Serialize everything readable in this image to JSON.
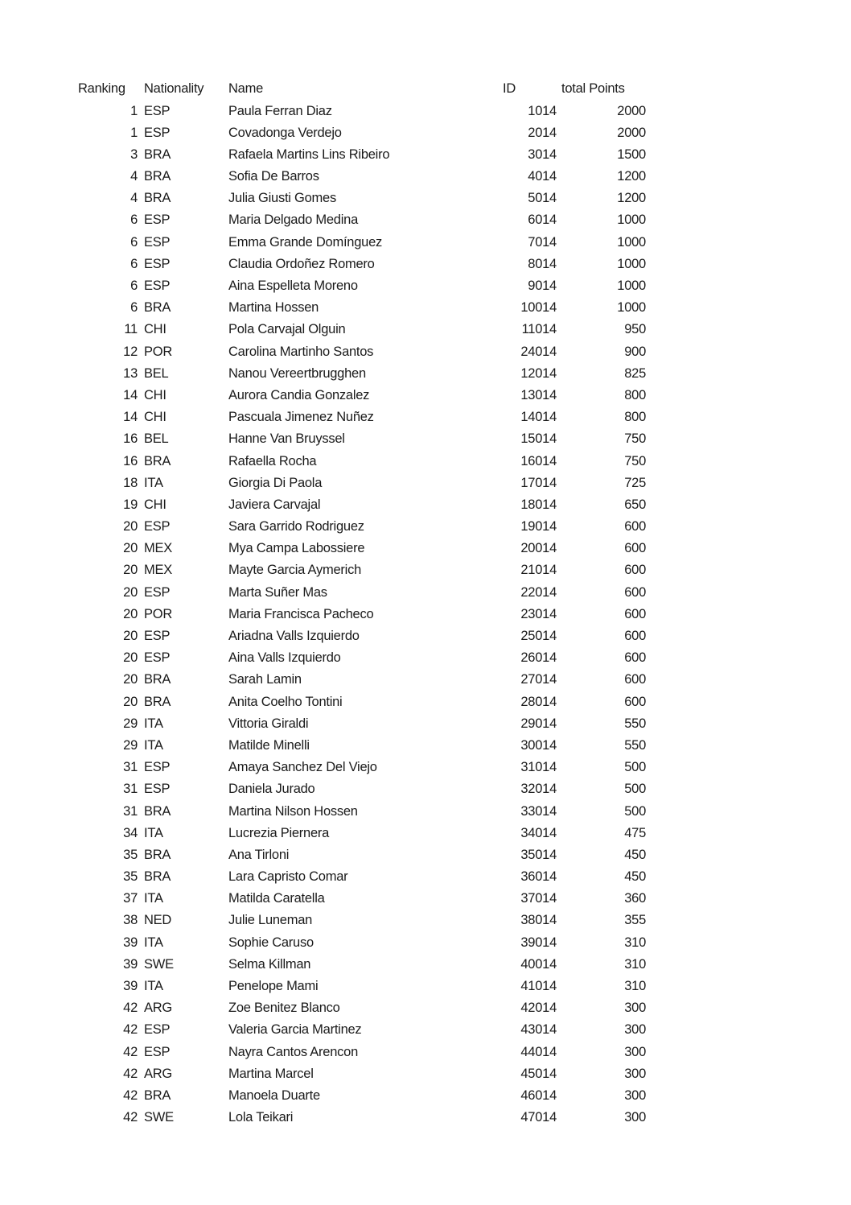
{
  "page": {
    "background_color": "#ffffff",
    "text_color": "#1b1b1b"
  },
  "table": {
    "columns": [
      {
        "key": "rank",
        "label": "Ranking"
      },
      {
        "key": "nat",
        "label": "Nationality"
      },
      {
        "key": "name",
        "label": "Name"
      },
      {
        "key": "id",
        "label": "ID"
      },
      {
        "key": "points",
        "label": "total Points"
      }
    ],
    "rows": [
      [
        1,
        "ESP",
        "Paula Ferran Diaz",
        1014,
        2000
      ],
      [
        1,
        "ESP",
        "Covadonga Verdejo",
        2014,
        2000
      ],
      [
        3,
        "BRA",
        "Rafaela Martins Lins Ribeiro",
        3014,
        1500
      ],
      [
        4,
        "BRA",
        "Sofia De Barros",
        4014,
        1200
      ],
      [
        4,
        "BRA",
        "Julia Giusti Gomes",
        5014,
        1200
      ],
      [
        6,
        "ESP",
        "Maria Delgado Medina",
        6014,
        1000
      ],
      [
        6,
        "ESP",
        "Emma Grande Domínguez",
        7014,
        1000
      ],
      [
        6,
        "ESP",
        "Claudia Ordoñez Romero",
        8014,
        1000
      ],
      [
        6,
        "ESP",
        "Aina Espelleta Moreno",
        9014,
        1000
      ],
      [
        6,
        "BRA",
        "Martina Hossen",
        10014,
        1000
      ],
      [
        11,
        "CHI",
        "Pola Carvajal Olguin",
        11014,
        950
      ],
      [
        12,
        "POR",
        "Carolina Martinho Santos",
        24014,
        900
      ],
      [
        13,
        "BEL",
        "Nanou Vereertbrugghen",
        12014,
        825
      ],
      [
        14,
        "CHI",
        "Aurora Candia Gonzalez",
        13014,
        800
      ],
      [
        14,
        "CHI",
        "Pascuala Jimenez Nuñez",
        14014,
        800
      ],
      [
        16,
        "BEL",
        "Hanne Van Bruyssel",
        15014,
        750
      ],
      [
        16,
        "BRA",
        "Rafaella Rocha",
        16014,
        750
      ],
      [
        18,
        "ITA",
        "Giorgia Di Paola",
        17014,
        725
      ],
      [
        19,
        "CHI",
        "Javiera Carvajal",
        18014,
        650
      ],
      [
        20,
        "ESP",
        "Sara Garrido Rodriguez",
        19014,
        600
      ],
      [
        20,
        "MEX",
        "Mya Campa Labossiere",
        20014,
        600
      ],
      [
        20,
        "MEX",
        "Mayte Garcia Aymerich",
        21014,
        600
      ],
      [
        20,
        "ESP",
        "Marta Suñer Mas",
        22014,
        600
      ],
      [
        20,
        "POR",
        "Maria Francisca Pacheco",
        23014,
        600
      ],
      [
        20,
        "ESP",
        "Ariadna Valls Izquierdo",
        25014,
        600
      ],
      [
        20,
        "ESP",
        "Aina Valls Izquierdo",
        26014,
        600
      ],
      [
        20,
        "BRA",
        "Sarah Lamin",
        27014,
        600
      ],
      [
        20,
        "BRA",
        "Anita Coelho Tontini",
        28014,
        600
      ],
      [
        29,
        "ITA",
        "Vittoria Giraldi",
        29014,
        550
      ],
      [
        29,
        "ITA",
        "Matilde Minelli",
        30014,
        550
      ],
      [
        31,
        "ESP",
        "Amaya Sanchez Del Viejo",
        31014,
        500
      ],
      [
        31,
        "ESP",
        "Daniela Jurado",
        32014,
        500
      ],
      [
        31,
        "BRA",
        "Martina Nilson Hossen",
        33014,
        500
      ],
      [
        34,
        "ITA",
        "Lucrezia Piernera",
        34014,
        475
      ],
      [
        35,
        "BRA",
        "Ana Tirloni",
        35014,
        450
      ],
      [
        35,
        "BRA",
        "Lara Capristo Comar",
        36014,
        450
      ],
      [
        37,
        "ITA",
        "Matilda Caratella",
        37014,
        360
      ],
      [
        38,
        "NED",
        "Julie Luneman",
        38014,
        355
      ],
      [
        39,
        "ITA",
        "Sophie Caruso",
        39014,
        310
      ],
      [
        39,
        "SWE",
        "Selma Killman",
        40014,
        310
      ],
      [
        39,
        "ITA",
        "Penelope Mami",
        41014,
        310
      ],
      [
        42,
        "ARG",
        "Zoe Benitez Blanco",
        42014,
        300
      ],
      [
        42,
        "ESP",
        "Valeria Garcia Martinez",
        43014,
        300
      ],
      [
        42,
        "ESP",
        "Nayra Cantos Arencon",
        44014,
        300
      ],
      [
        42,
        "ARG",
        "Martina Marcel",
        45014,
        300
      ],
      [
        42,
        "BRA",
        "Manoela Duarte",
        46014,
        300
      ],
      [
        42,
        "SWE",
        "Lola Teikari",
        47014,
        300
      ]
    ]
  }
}
